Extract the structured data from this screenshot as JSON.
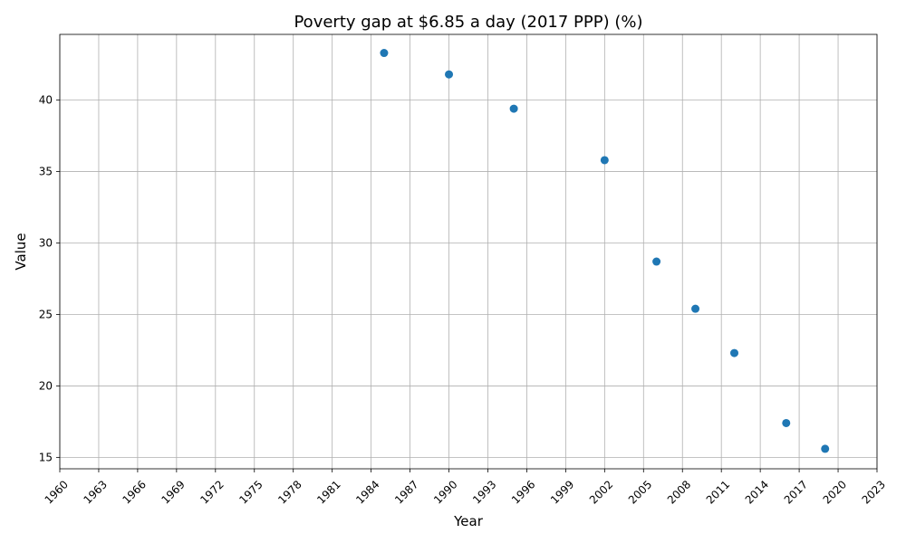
{
  "chart_data": {
    "type": "scatter",
    "title": "Poverty gap at $6.85 a day (2017 PPP) (%)",
    "xlabel": "Year",
    "ylabel": "Value",
    "xlim": [
      1960,
      2023
    ],
    "ylim": [
      14.2,
      44.6
    ],
    "grid": true,
    "xticks": [
      1960,
      1963,
      1966,
      1969,
      1972,
      1975,
      1978,
      1981,
      1984,
      1987,
      1990,
      1993,
      1996,
      1999,
      2002,
      2005,
      2008,
      2011,
      2014,
      2017,
      2020,
      2023
    ],
    "yticks": [
      15,
      20,
      25,
      30,
      35,
      40
    ],
    "point_color": "#1f77b4",
    "series": [
      {
        "x": [
          1985,
          1990,
          1995,
          2002,
          2006,
          2009,
          2012,
          2016,
          2019
        ],
        "y": [
          43.3,
          41.8,
          39.4,
          35.8,
          28.7,
          25.4,
          22.3,
          17.4,
          15.6
        ]
      }
    ]
  }
}
